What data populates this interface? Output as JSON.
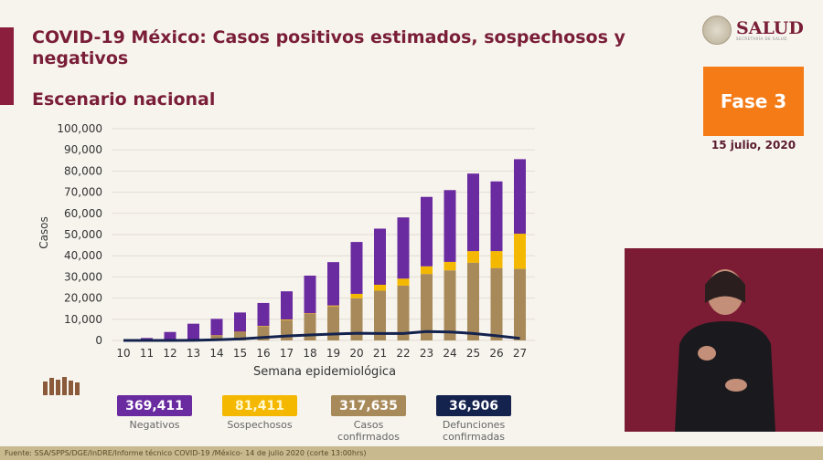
{
  "header": {
    "title": "COVID-19 México: Casos positivos estimados, sospechosos y negativos",
    "subtitle": "Escenario nacional",
    "logo_text": "SALUD",
    "logo_subtext": "SECRETARÍA DE SALUD",
    "phase": "Fase 3",
    "date": "15 julio, 2020"
  },
  "colors": {
    "accent": "#8a1e3c",
    "negativos": "#6a2aa0",
    "sospechosos": "#f5b800",
    "confirmados": "#a88a5a",
    "defunciones": "#14224e",
    "phase": "#f47b16"
  },
  "chart_data": {
    "type": "bar",
    "stacked": true,
    "xlabel": "Semana epidemiológica",
    "ylabel": "Casos",
    "ylim": [
      0,
      100000
    ],
    "yticks": [
      "0",
      "10,000",
      "20,000",
      "30,000",
      "40,000",
      "50,000",
      "60,000",
      "70,000",
      "80,000",
      "90,000",
      "100,000"
    ],
    "categories": [
      "10",
      "11",
      "12",
      "13",
      "14",
      "15",
      "16",
      "17",
      "18",
      "19",
      "20",
      "21",
      "22",
      "23",
      "24",
      "25",
      "26",
      "27"
    ],
    "series": [
      {
        "name": "Casos confirmados",
        "values": [
          0,
          100,
          300,
          500,
          2200,
          3900,
          6500,
          9600,
          12500,
          16100,
          19900,
          23500,
          25900,
          31400,
          33100,
          36700,
          34200,
          33800
        ]
      },
      {
        "name": "Sospechosos",
        "values": [
          0,
          50,
          100,
          100,
          200,
          200,
          300,
          300,
          300,
          400,
          2100,
          2800,
          3300,
          3600,
          4000,
          5500,
          8000,
          16600
        ]
      },
      {
        "name": "Negativos",
        "values": [
          0,
          1000,
          3600,
          7300,
          7800,
          9100,
          10900,
          13300,
          17800,
          20500,
          24500,
          26500,
          28900,
          32800,
          33900,
          36600,
          32900,
          35200
        ]
      },
      {
        "name": "Defunciones confirmadas",
        "type": "line",
        "values": [
          0,
          0,
          0,
          50,
          300,
          700,
          1400,
          2100,
          2600,
          3000,
          3400,
          3300,
          3300,
          4200,
          4000,
          3300,
          2200,
          1000
        ]
      }
    ]
  },
  "totals": [
    {
      "value": "369,411",
      "label": "Negativos",
      "color": "#6a2aa0"
    },
    {
      "value": "81,411",
      "label": "Sospechosos",
      "color": "#f5b800"
    },
    {
      "value": "317,635",
      "label": "Casos confirmados",
      "color": "#a88a5a"
    },
    {
      "value": "36,906",
      "label": "Defunciones confirmadas",
      "color": "#14224e"
    }
  ],
  "footer": "Fuente: SSA/SPPS/DGE/InDRE/Informe técnico COVID-19 /México- 14 de julio 2020 (corte 13:00hrs)"
}
